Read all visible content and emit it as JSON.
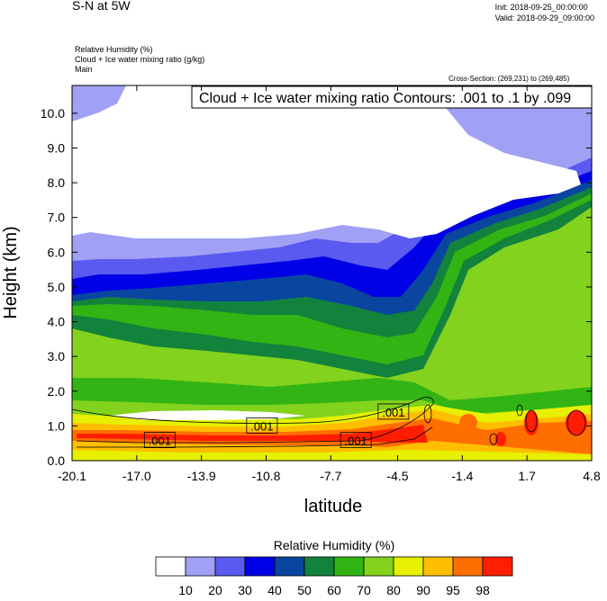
{
  "header": {
    "title": "S-N at 5W",
    "init": "Init: 2018-09-25_00:00:00",
    "valid": "Valid: 2018-09-29_09:00:00",
    "field1": "Relative Humidity   (%)",
    "field2": "Cloud + Ice water mixing ratio   (g/kg)",
    "field3": "Main",
    "cross_section": "Cross-Section: (269,231) to (269,485)"
  },
  "chart_data": {
    "type": "heatmap",
    "title": "Cloud + Ice water mixing ratio Contours: .001 to .1 by .099",
    "xlabel": "latitude",
    "ylabel": "Height (km)",
    "x_ticks": [
      "-20.1",
      "-17.0",
      "-13.9",
      "-10.8",
      "-7.7",
      "-4.5",
      "-1.4",
      "1.7",
      "4.8"
    ],
    "xlim": [
      -20.1,
      4.8
    ],
    "y_ticks": [
      "0.0",
      "1.0",
      "2.0",
      "3.0",
      "4.0",
      "5.0",
      "6.0",
      "7.0",
      "8.0",
      "9.0",
      "10.0"
    ],
    "ylim": [
      0,
      10.8
    ],
    "contour_labels": [
      {
        "text": ".001",
        "x": -15.9,
        "y": 0.58
      },
      {
        "text": ".001",
        "x": -11.0,
        "y": 1.0
      },
      {
        "text": ".001",
        "x": -6.5,
        "y": 0.58
      },
      {
        "text": ".001",
        "x": -4.7,
        "y": 1.4
      }
    ],
    "colorbar": {
      "title": "Relative Humidity  (%)",
      "labels": [
        "10",
        "20",
        "30",
        "40",
        "50",
        "60",
        "70",
        "80",
        "90",
        "95",
        "98"
      ],
      "colors": [
        "#ffffff",
        "#a0a0f5",
        "#5a5af0",
        "#0000e6",
        "#0a46a0",
        "#12823c",
        "#32b414",
        "#82d21e",
        "#e6f000",
        "#ffbe00",
        "#ff6e00",
        "#ff1e00"
      ]
    }
  }
}
